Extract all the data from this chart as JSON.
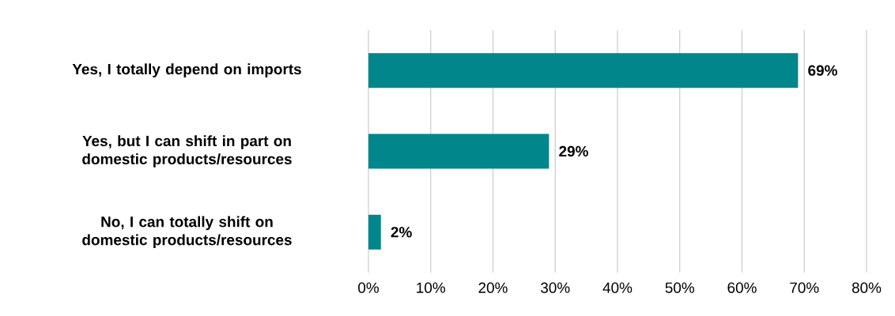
{
  "chart_data": {
    "type": "bar",
    "orientation": "horizontal",
    "categories": [
      "Yes, I totally depend on imports",
      "Yes, but I can shift in part on domestic products/resources",
      "No,  I can totally shift on domestic products/resources"
    ],
    "values": [
      69,
      29,
      2
    ],
    "value_labels": [
      "69%",
      "29%",
      "2%"
    ],
    "color": "#00868b",
    "xlim": [
      0,
      80
    ],
    "xticks": [
      {
        "value": 0,
        "label": "0%"
      },
      {
        "value": 10,
        "label": "10%"
      },
      {
        "value": 20,
        "label": "20%"
      },
      {
        "value": 30,
        "label": "30%"
      },
      {
        "value": 40,
        "label": "40%"
      },
      {
        "value": 50,
        "label": "50%"
      },
      {
        "value": 60,
        "label": "60%"
      },
      {
        "value": 70,
        "label": "70%"
      },
      {
        "value": 80,
        "label": "80%"
      }
    ],
    "grid": "x"
  }
}
